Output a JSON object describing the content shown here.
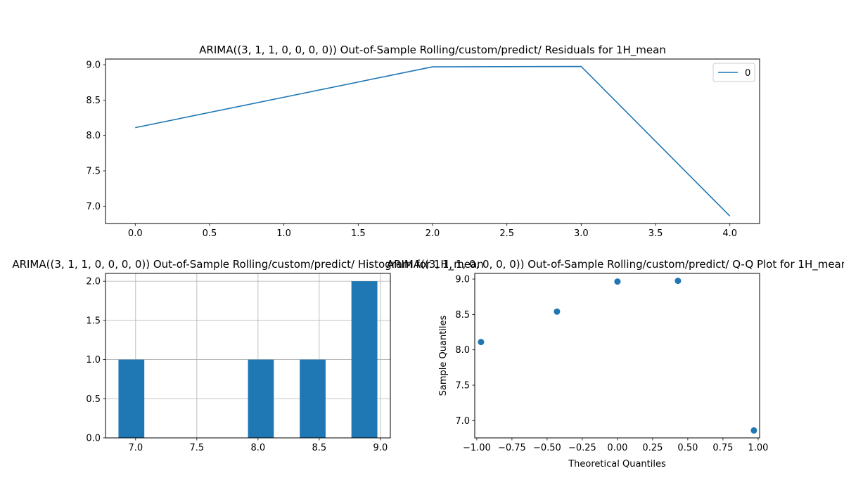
{
  "chart_data": [
    {
      "type": "line",
      "title": "ARIMA((3, 1, 1, 0, 0, 0, 0)) Out-of-Sample Rolling/custom/predict/ Residuals for 1H_mean",
      "xlabel": "",
      "ylabel": "",
      "x": [
        0,
        1,
        2,
        3,
        4
      ],
      "series": [
        {
          "name": "0",
          "values": [
            8.11,
            8.54,
            8.97,
            8.975,
            6.86
          ],
          "color": "#1f77b4"
        }
      ],
      "xlim": [
        -0.2,
        4.2
      ],
      "ylim": [
        6.755,
        9.08
      ],
      "xticks": [
        0.0,
        0.5,
        1.0,
        1.5,
        2.0,
        2.5,
        3.0,
        3.5,
        4.0
      ],
      "xtick_labels": [
        "0.0",
        "0.5",
        "1.0",
        "1.5",
        "2.0",
        "2.5",
        "3.0",
        "3.5",
        "4.0"
      ],
      "yticks": [
        7.0,
        7.5,
        8.0,
        8.5,
        9.0
      ],
      "ytick_labels": [
        "7.0",
        "7.5",
        "8.0",
        "8.5",
        "9.0"
      ],
      "grid": false,
      "legend": "top-right"
    },
    {
      "type": "bar",
      "title": "ARIMA((3, 1, 1, 0, 0, 0, 0)) Out-of-Sample Rolling/custom/predict/ Histogram for 1H_mean",
      "xlabel": "",
      "ylabel": "",
      "bins": [
        {
          "from": 6.86,
          "to": 7.071,
          "count": 1
        },
        {
          "from": 7.071,
          "to": 7.283,
          "count": 0
        },
        {
          "from": 7.283,
          "to": 7.494,
          "count": 0
        },
        {
          "from": 7.494,
          "to": 7.706,
          "count": 0
        },
        {
          "from": 7.706,
          "to": 7.918,
          "count": 0
        },
        {
          "from": 7.918,
          "to": 8.129,
          "count": 1
        },
        {
          "from": 8.129,
          "to": 8.341,
          "count": 0
        },
        {
          "from": 8.341,
          "to": 8.552,
          "count": 1
        },
        {
          "from": 8.552,
          "to": 8.763,
          "count": 0
        },
        {
          "from": 8.763,
          "to": 8.975,
          "count": 2
        }
      ],
      "color": "#1f77b4",
      "xlim": [
        6.754,
        9.081
      ],
      "ylim": [
        0,
        2.1
      ],
      "xticks": [
        7.0,
        7.5,
        8.0,
        8.5,
        9.0
      ],
      "xtick_labels": [
        "7.0",
        "7.5",
        "8.0",
        "8.5",
        "9.0"
      ],
      "yticks": [
        0.0,
        0.5,
        1.0,
        1.5,
        2.0
      ],
      "ytick_labels": [
        "0.0",
        "0.5",
        "1.0",
        "1.5",
        "2.0"
      ],
      "grid": true
    },
    {
      "type": "scatter",
      "title": "ARIMA((3, 1, 1, 0, 0, 0, 0)) Out-of-Sample Rolling/custom/predict/ Q-Q Plot for 1H_mean",
      "xlabel": "Theoretical Quantiles",
      "ylabel": "Sample Quantiles",
      "points": [
        {
          "x": -0.97,
          "y": 8.11
        },
        {
          "x": -0.43,
          "y": 8.54
        },
        {
          "x": 0.0,
          "y": 8.965
        },
        {
          "x": 0.43,
          "y": 8.975
        },
        {
          "x": 0.97,
          "y": 6.86
        }
      ],
      "color": "#1f77b4",
      "xlim": [
        -1.0145,
        1.0105
      ],
      "ylim": [
        6.755,
        9.08
      ],
      "xticks": [
        -1.0,
        -0.75,
        -0.5,
        -0.25,
        0.0,
        0.25,
        0.5,
        0.75,
        1.0
      ],
      "xtick_labels": [
        "−1.00",
        "−0.75",
        "−0.50",
        "−0.25",
        "0.00",
        "0.25",
        "0.50",
        "0.75",
        "1.00"
      ],
      "yticks": [
        7.0,
        7.5,
        8.0,
        8.5,
        9.0
      ],
      "ytick_labels": [
        "7.0",
        "7.5",
        "8.0",
        "8.5",
        "9.0"
      ],
      "grid": false
    }
  ]
}
